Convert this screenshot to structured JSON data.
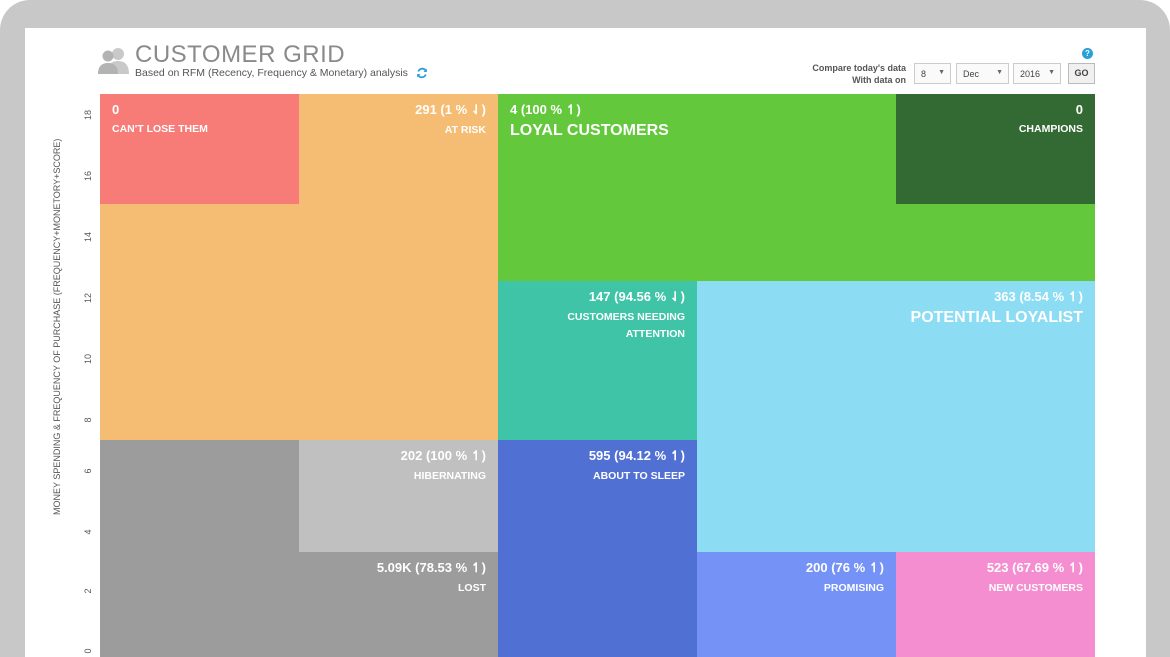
{
  "header": {
    "title": "CUSTOMER GRID",
    "subtitle": "Based on RFM (Recency, Frequency & Monetary) analysis",
    "compare_label_line1": "Compare today's data",
    "compare_label_line2": "With data on",
    "day": "8",
    "month": "Dec",
    "year": "2016",
    "go_label": "GO",
    "help": "?"
  },
  "axis": {
    "y_title": "MONEY SPENDING & FREQUENCY OF PURCHASE (FREQUENCY+MONETORY+SCORE)",
    "y_ticks": [
      "18",
      "16",
      "14",
      "12",
      "10",
      "8",
      "6",
      "4",
      "2",
      "0"
    ]
  },
  "segments": {
    "cant_lose": {
      "count": "0",
      "label": "CAN'T LOSE THEM",
      "color": "#f77b77"
    },
    "at_risk": {
      "count": "291 (1 % ⇃)",
      "label": "AT RISK",
      "color": "#f5bd73"
    },
    "loyal": {
      "count": "4 (100 % ↿)",
      "label": "LOYAL CUSTOMERS",
      "color": "#64c83c"
    },
    "champions": {
      "count": "0",
      "label": "CHAMPIONS",
      "color": "#336a33"
    },
    "needing_attention": {
      "count": "147 (94.56 % ⇃)",
      "label": "CUSTOMERS NEEDING ATTENTION",
      "color": "#3fc4a8"
    },
    "potential_loyalist": {
      "count": "363 (8.54 % ↿)",
      "label": "POTENTIAL LOYALIST",
      "color": "#8cdcf4"
    },
    "hibernating": {
      "count": "202 (100 % ↿)",
      "label": "HIBERNATING",
      "color": "#c0c0c0"
    },
    "about_to_sleep": {
      "count": "595 (94.12 % ↿)",
      "label": "ABOUT TO SLEEP",
      "color": "#5170d4"
    },
    "lost": {
      "count": "5.09K (78.53 % ↿)",
      "label": "LOST",
      "color": "#9c9c9c"
    },
    "promising": {
      "count": "200 (76 % ↿)",
      "label": "PROMISING",
      "color": "#7592f6"
    },
    "new_customers": {
      "count": "523 (67.69 % ↿)",
      "label": "NEW CUSTOMERS",
      "color": "#f58ed0"
    }
  }
}
